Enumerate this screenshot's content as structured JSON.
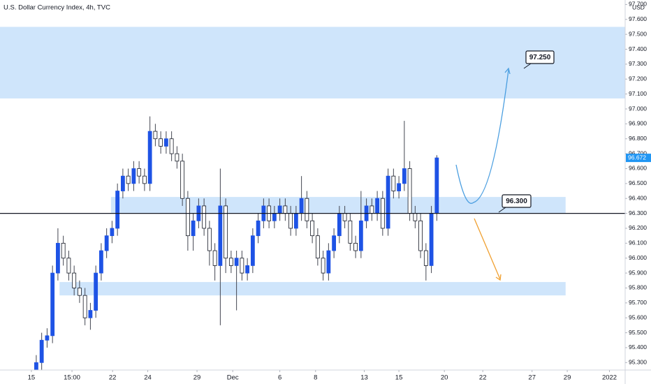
{
  "chart_data": {
    "type": "candlestick",
    "title": "U.S. Dollar Currency Index, 4h, TVC",
    "currency": "USD",
    "up_color": "#1e53e5",
    "down_color": "#ffffff",
    "x": [
      0,
      1,
      2,
      3,
      4,
      5,
      6,
      7,
      8,
      9,
      10,
      11,
      12,
      13,
      14,
      15,
      16,
      17,
      18,
      19,
      20,
      21,
      22,
      23,
      24,
      25,
      26,
      27,
      28,
      29,
      30,
      31,
      32,
      33,
      34,
      35,
      36,
      37,
      38,
      39,
      40,
      41,
      42,
      43,
      44,
      45,
      46,
      47,
      48,
      49,
      50,
      51,
      52,
      53,
      54,
      55,
      56,
      57,
      58,
      59,
      60,
      61,
      62,
      63,
      64,
      65,
      66,
      67,
      68,
      69,
      70,
      71,
      72,
      73,
      74
    ],
    "open": [
      95.25,
      95.3,
      95.45,
      95.48,
      95.9,
      96.1,
      96.0,
      95.9,
      95.8,
      95.75,
      95.6,
      95.65,
      95.9,
      96.05,
      96.15,
      96.2,
      96.45,
      96.55,
      96.5,
      96.6,
      96.55,
      96.5,
      96.85,
      96.8,
      96.75,
      96.8,
      96.7,
      96.65,
      96.4,
      96.15,
      96.25,
      96.35,
      96.2,
      96.05,
      95.95,
      96.35,
      96.0,
      95.95,
      96.0,
      95.9,
      95.95,
      96.15,
      96.25,
      96.35,
      96.25,
      96.3,
      96.35,
      96.3,
      96.2,
      96.3,
      96.4,
      96.25,
      96.15,
      96.0,
      95.9,
      96.05,
      96.15,
      96.3,
      96.25,
      96.1,
      96.05,
      96.25,
      96.35,
      96.3,
      96.4,
      96.2,
      96.55,
      96.45,
      96.5,
      96.6,
      96.3,
      96.25,
      96.05,
      95.95,
      96.3
    ],
    "high": [
      95.35,
      95.5,
      95.53,
      95.95,
      96.2,
      96.15,
      96.05,
      95.95,
      95.85,
      95.8,
      95.7,
      95.95,
      96.1,
      96.2,
      96.25,
      96.5,
      96.6,
      96.6,
      96.65,
      96.65,
      96.6,
      96.95,
      96.9,
      96.85,
      96.85,
      96.85,
      96.75,
      96.7,
      96.45,
      96.3,
      96.4,
      96.4,
      96.25,
      96.1,
      96.6,
      96.4,
      96.05,
      96.05,
      96.05,
      96.0,
      96.2,
      96.3,
      96.4,
      96.4,
      96.35,
      96.4,
      96.4,
      96.35,
      96.35,
      96.55,
      96.45,
      96.3,
      96.2,
      96.05,
      96.1,
      96.2,
      96.35,
      96.35,
      96.3,
      96.15,
      96.45,
      96.4,
      96.4,
      96.45,
      96.45,
      96.6,
      96.6,
      96.55,
      96.92,
      96.65,
      96.35,
      96.3,
      96.1,
      96.35,
      96.69
    ],
    "low": [
      95.2,
      95.25,
      95.4,
      95.43,
      95.85,
      95.95,
      95.85,
      95.75,
      95.7,
      95.55,
      95.52,
      95.6,
      95.85,
      96.0,
      96.1,
      96.15,
      96.4,
      96.45,
      96.45,
      96.5,
      96.45,
      96.45,
      96.75,
      96.7,
      96.7,
      96.65,
      96.6,
      96.35,
      96.05,
      96.05,
      96.2,
      96.15,
      95.95,
      95.85,
      95.55,
      95.9,
      95.9,
      95.65,
      95.85,
      95.85,
      95.9,
      96.1,
      96.2,
      96.2,
      96.2,
      96.25,
      96.25,
      96.15,
      96.15,
      96.25,
      96.2,
      96.1,
      95.95,
      95.85,
      95.85,
      96.0,
      96.1,
      96.2,
      96.05,
      96.0,
      96.0,
      96.2,
      96.25,
      96.25,
      96.15,
      96.15,
      96.4,
      96.4,
      96.45,
      96.25,
      96.2,
      96.0,
      95.85,
      95.9,
      96.25
    ],
    "close": [
      95.3,
      95.45,
      95.48,
      95.9,
      96.1,
      96.0,
      95.9,
      95.8,
      95.75,
      95.6,
      95.65,
      95.9,
      96.05,
      96.15,
      96.2,
      96.45,
      96.55,
      96.5,
      96.6,
      96.55,
      96.5,
      96.85,
      96.8,
      96.75,
      96.8,
      96.7,
      96.65,
      96.4,
      96.15,
      96.25,
      96.35,
      96.2,
      96.05,
      95.95,
      96.35,
      96.0,
      95.95,
      96.0,
      95.9,
      95.95,
      96.15,
      96.25,
      96.35,
      96.25,
      96.3,
      96.35,
      96.3,
      96.2,
      96.3,
      96.4,
      96.25,
      96.15,
      96.0,
      95.9,
      96.05,
      96.15,
      96.3,
      96.25,
      96.1,
      96.05,
      96.25,
      96.35,
      96.3,
      96.4,
      96.2,
      96.55,
      96.45,
      96.5,
      96.6,
      96.3,
      96.25,
      96.05,
      95.95,
      96.3,
      96.672
    ],
    "last_label": "96.672",
    "xlim": [
      -6.7,
      108.8
    ],
    "ylim": [
      95.25,
      97.73
    ],
    "xticks": [
      {
        "value": -0.9,
        "label": "15"
      },
      {
        "value": 6.6,
        "label": "15:00"
      },
      {
        "value": 14.1,
        "label": "22"
      },
      {
        "value": 20.6,
        "label": "24"
      },
      {
        "value": 29.7,
        "label": "29"
      },
      {
        "value": 36.3,
        "label": "Dec"
      },
      {
        "value": 45.0,
        "label": "6"
      },
      {
        "value": 51.6,
        "label": "8"
      },
      {
        "value": 60.6,
        "label": "13"
      },
      {
        "value": 67.0,
        "label": "15"
      },
      {
        "value": 75.4,
        "label": "20"
      },
      {
        "value": 82.5,
        "label": "22"
      },
      {
        "value": 91.6,
        "label": "27"
      },
      {
        "value": 98.1,
        "label": "29"
      },
      {
        "value": 105.9,
        "label": "2022"
      }
    ],
    "yticks": [
      {
        "value": 95.3,
        "label": "95.300"
      },
      {
        "value": 95.4,
        "label": "95.400"
      },
      {
        "value": 95.5,
        "label": "95.500"
      },
      {
        "value": 95.6,
        "label": "95.600"
      },
      {
        "value": 95.7,
        "label": "95.700"
      },
      {
        "value": 95.8,
        "label": "95.800"
      },
      {
        "value": 95.9,
        "label": "95.900"
      },
      {
        "value": 96.0,
        "label": "96.000"
      },
      {
        "value": 96.1,
        "label": "96.100"
      },
      {
        "value": 96.2,
        "label": "96.200"
      },
      {
        "value": 96.3,
        "label": "96.300"
      },
      {
        "value": 96.4,
        "label": "96.400"
      },
      {
        "value": 96.5,
        "label": "96.500"
      },
      {
        "value": 96.6,
        "label": "96.600"
      },
      {
        "value": 96.7,
        "label": "96.700"
      },
      {
        "value": 96.8,
        "label": "96.800"
      },
      {
        "value": 96.9,
        "label": "96.900"
      },
      {
        "value": 97.0,
        "label": "97.000"
      },
      {
        "value": 97.1,
        "label": "97.100"
      },
      {
        "value": 97.2,
        "label": "97.200"
      },
      {
        "value": 97.3,
        "label": "97.300"
      },
      {
        "value": 97.4,
        "label": "97.400"
      },
      {
        "value": 97.5,
        "label": "97.500"
      },
      {
        "value": 97.6,
        "label": "97.600"
      },
      {
        "value": 97.7,
        "label": "97.700"
      }
    ],
    "zones": [
      {
        "ylim": [
          97.07,
          97.55
        ]
      },
      {
        "xlim": [
          13.8,
          97.8
        ],
        "ylim": [
          96.3,
          96.41
        ]
      },
      {
        "xlim": [
          4.3,
          97.8
        ],
        "ylim": [
          95.75,
          95.84
        ]
      }
    ],
    "zone_color": "#cfe5fb",
    "level": 96.3,
    "annotations": [
      "97.250",
      "96.300"
    ]
  }
}
